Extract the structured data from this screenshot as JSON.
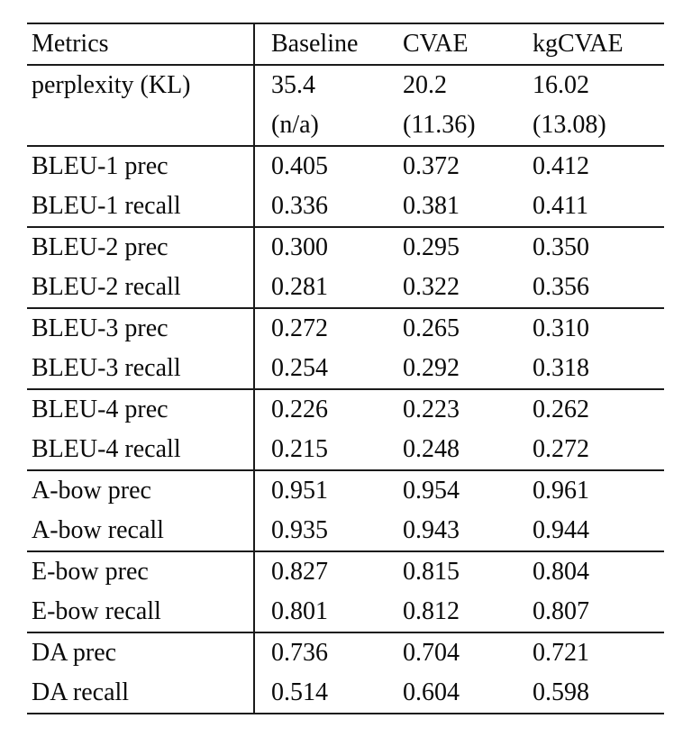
{
  "table": {
    "headers": [
      "Metrics",
      "Baseline",
      "CVAE",
      "kgCVAE"
    ],
    "groups": [
      {
        "rows": [
          {
            "metric": "perplexity (KL)",
            "values": [
              "35.4",
              "20.2",
              "16.02"
            ],
            "bold": [
              false,
              false,
              false
            ]
          },
          {
            "metric": "",
            "values": [
              "(n/a)",
              "(11.36)",
              "(13.08)"
            ],
            "bold": [
              false,
              false,
              false
            ]
          }
        ]
      },
      {
        "rows": [
          {
            "metric": "BLEU-1 prec",
            "values": [
              "0.405",
              "0.372",
              "0.412"
            ],
            "bold": [
              false,
              false,
              true
            ]
          },
          {
            "metric": "BLEU-1 recall",
            "values": [
              "0.336",
              "0.381",
              "0.411"
            ],
            "bold": [
              false,
              false,
              true
            ]
          }
        ]
      },
      {
        "rows": [
          {
            "metric": "BLEU-2 prec",
            "values": [
              "0.300",
              "0.295",
              "0.350"
            ],
            "bold": [
              false,
              false,
              true
            ]
          },
          {
            "metric": "BLEU-2 recall",
            "values": [
              "0.281",
              "0.322",
              "0.356"
            ],
            "bold": [
              false,
              false,
              true
            ]
          }
        ]
      },
      {
        "rows": [
          {
            "metric": "BLEU-3 prec",
            "values": [
              "0.272",
              "0.265",
              "0.310"
            ],
            "bold": [
              false,
              false,
              true
            ]
          },
          {
            "metric": "BLEU-3 recall",
            "values": [
              "0.254",
              "0.292",
              "0.318"
            ],
            "bold": [
              false,
              false,
              true
            ]
          }
        ]
      },
      {
        "rows": [
          {
            "metric": "BLEU-4 prec",
            "values": [
              "0.226",
              "0.223",
              "0.262"
            ],
            "bold": [
              false,
              false,
              true
            ]
          },
          {
            "metric": "BLEU-4 recall",
            "values": [
              "0.215",
              "0.248",
              "0.272"
            ],
            "bold": [
              false,
              false,
              true
            ]
          }
        ]
      },
      {
        "rows": [
          {
            "metric": "A-bow prec",
            "values": [
              "0.951",
              "0.954",
              "0.961"
            ],
            "bold": [
              false,
              false,
              true
            ]
          },
          {
            "metric": "A-bow recall",
            "values": [
              "0.935",
              "0.943",
              "0.944"
            ],
            "bold": [
              false,
              false,
              true
            ]
          }
        ]
      },
      {
        "rows": [
          {
            "metric": "E-bow prec",
            "values": [
              "0.827",
              "0.815",
              "0.804"
            ],
            "bold": [
              true,
              false,
              false
            ]
          },
          {
            "metric": "E-bow recall",
            "values": [
              "0.801",
              "0.812",
              "0.807"
            ],
            "bold": [
              false,
              true,
              false
            ]
          }
        ]
      },
      {
        "rows": [
          {
            "metric": "DA prec",
            "values": [
              "0.736",
              "0.704",
              "0.721"
            ],
            "bold": [
              true,
              false,
              false
            ]
          },
          {
            "metric": "DA recall",
            "values": [
              "0.514",
              "0.604",
              "0.598"
            ],
            "bold": [
              false,
              true,
              false
            ]
          }
        ]
      }
    ]
  }
}
